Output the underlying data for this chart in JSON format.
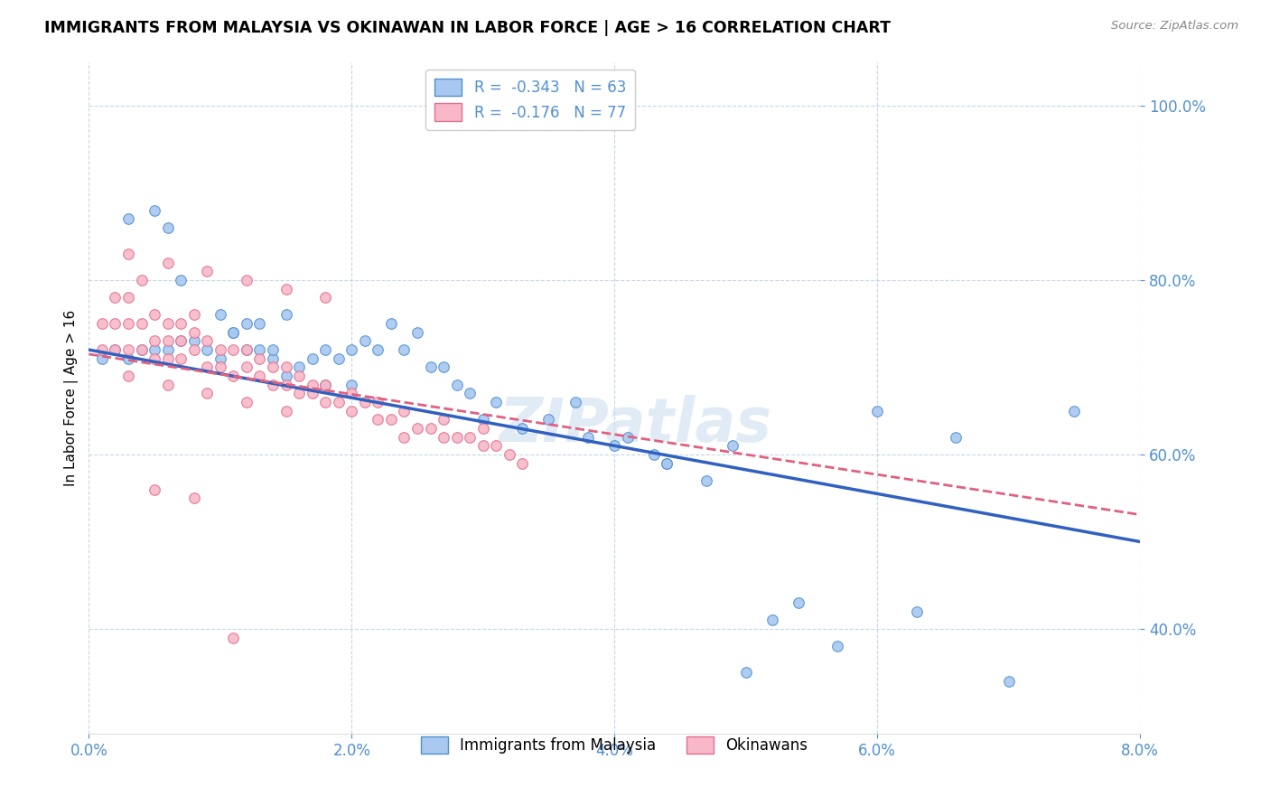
{
  "title": "IMMIGRANTS FROM MALAYSIA VS OKINAWAN IN LABOR FORCE | AGE > 16 CORRELATION CHART",
  "source": "Source: ZipAtlas.com",
  "xlabel_vals": [
    0.0,
    0.02,
    0.04,
    0.06,
    0.08
  ],
  "ylabel_vals": [
    0.4,
    0.6,
    0.8,
    1.0
  ],
  "xlim": [
    0.0,
    0.08
  ],
  "ylim": [
    0.28,
    1.05
  ],
  "ylabel": "In Labor Force | Age > 16",
  "legend_blue_label": "Immigrants from Malaysia",
  "legend_pink_label": "Okinawans",
  "R_blue": -0.343,
  "N_blue": 63,
  "R_pink": -0.176,
  "N_pink": 77,
  "color_blue_fill": "#A8C8F0",
  "color_pink_fill": "#F8B8C8",
  "color_blue_edge": "#5090D0",
  "color_pink_edge": "#E07090",
  "color_blue_line": "#3060C0",
  "color_pink_line": "#E06080",
  "color_axis_tick": "#5090D0",
  "watermark": "ZIPatlas",
  "blue_x": [
    0.001,
    0.002,
    0.003,
    0.003,
    0.004,
    0.005,
    0.005,
    0.006,
    0.006,
    0.007,
    0.007,
    0.008,
    0.009,
    0.01,
    0.01,
    0.011,
    0.011,
    0.012,
    0.012,
    0.013,
    0.013,
    0.014,
    0.014,
    0.015,
    0.015,
    0.016,
    0.017,
    0.018,
    0.018,
    0.019,
    0.02,
    0.02,
    0.021,
    0.022,
    0.023,
    0.024,
    0.025,
    0.026,
    0.027,
    0.028,
    0.029,
    0.03,
    0.031,
    0.033,
    0.035,
    0.037,
    0.038,
    0.04,
    0.041,
    0.043,
    0.044,
    0.047,
    0.049,
    0.052,
    0.054,
    0.057,
    0.06,
    0.063,
    0.066,
    0.07,
    0.044,
    0.05,
    0.075
  ],
  "blue_y": [
    0.71,
    0.72,
    0.71,
    0.87,
    0.72,
    0.88,
    0.72,
    0.72,
    0.86,
    0.73,
    0.8,
    0.73,
    0.72,
    0.71,
    0.76,
    0.74,
    0.74,
    0.72,
    0.75,
    0.72,
    0.75,
    0.71,
    0.72,
    0.76,
    0.69,
    0.7,
    0.71,
    0.72,
    0.68,
    0.71,
    0.72,
    0.68,
    0.73,
    0.72,
    0.75,
    0.72,
    0.74,
    0.7,
    0.7,
    0.68,
    0.67,
    0.64,
    0.66,
    0.63,
    0.64,
    0.66,
    0.62,
    0.61,
    0.62,
    0.6,
    0.59,
    0.57,
    0.61,
    0.41,
    0.43,
    0.38,
    0.65,
    0.42,
    0.62,
    0.34,
    0.59,
    0.35,
    0.65
  ],
  "pink_x": [
    0.001,
    0.001,
    0.002,
    0.002,
    0.002,
    0.003,
    0.003,
    0.003,
    0.004,
    0.004,
    0.004,
    0.005,
    0.005,
    0.005,
    0.006,
    0.006,
    0.006,
    0.007,
    0.007,
    0.007,
    0.008,
    0.008,
    0.008,
    0.009,
    0.009,
    0.01,
    0.01,
    0.011,
    0.011,
    0.012,
    0.012,
    0.013,
    0.013,
    0.014,
    0.014,
    0.015,
    0.015,
    0.016,
    0.016,
    0.017,
    0.017,
    0.018,
    0.018,
    0.019,
    0.02,
    0.02,
    0.021,
    0.022,
    0.022,
    0.023,
    0.024,
    0.024,
    0.025,
    0.026,
    0.027,
    0.027,
    0.028,
    0.029,
    0.03,
    0.03,
    0.031,
    0.032,
    0.033,
    0.003,
    0.006,
    0.009,
    0.012,
    0.015,
    0.018,
    0.003,
    0.006,
    0.009,
    0.012,
    0.015,
    0.005,
    0.008,
    0.011
  ],
  "pink_y": [
    0.72,
    0.75,
    0.72,
    0.75,
    0.78,
    0.72,
    0.75,
    0.78,
    0.72,
    0.75,
    0.8,
    0.71,
    0.73,
    0.76,
    0.71,
    0.73,
    0.75,
    0.71,
    0.73,
    0.75,
    0.72,
    0.74,
    0.76,
    0.7,
    0.73,
    0.7,
    0.72,
    0.69,
    0.72,
    0.7,
    0.72,
    0.69,
    0.71,
    0.68,
    0.7,
    0.68,
    0.7,
    0.67,
    0.69,
    0.67,
    0.68,
    0.66,
    0.68,
    0.66,
    0.65,
    0.67,
    0.66,
    0.64,
    0.66,
    0.64,
    0.62,
    0.65,
    0.63,
    0.63,
    0.62,
    0.64,
    0.62,
    0.62,
    0.61,
    0.63,
    0.61,
    0.6,
    0.59,
    0.83,
    0.82,
    0.81,
    0.8,
    0.79,
    0.78,
    0.69,
    0.68,
    0.67,
    0.66,
    0.65,
    0.56,
    0.55,
    0.39
  ]
}
